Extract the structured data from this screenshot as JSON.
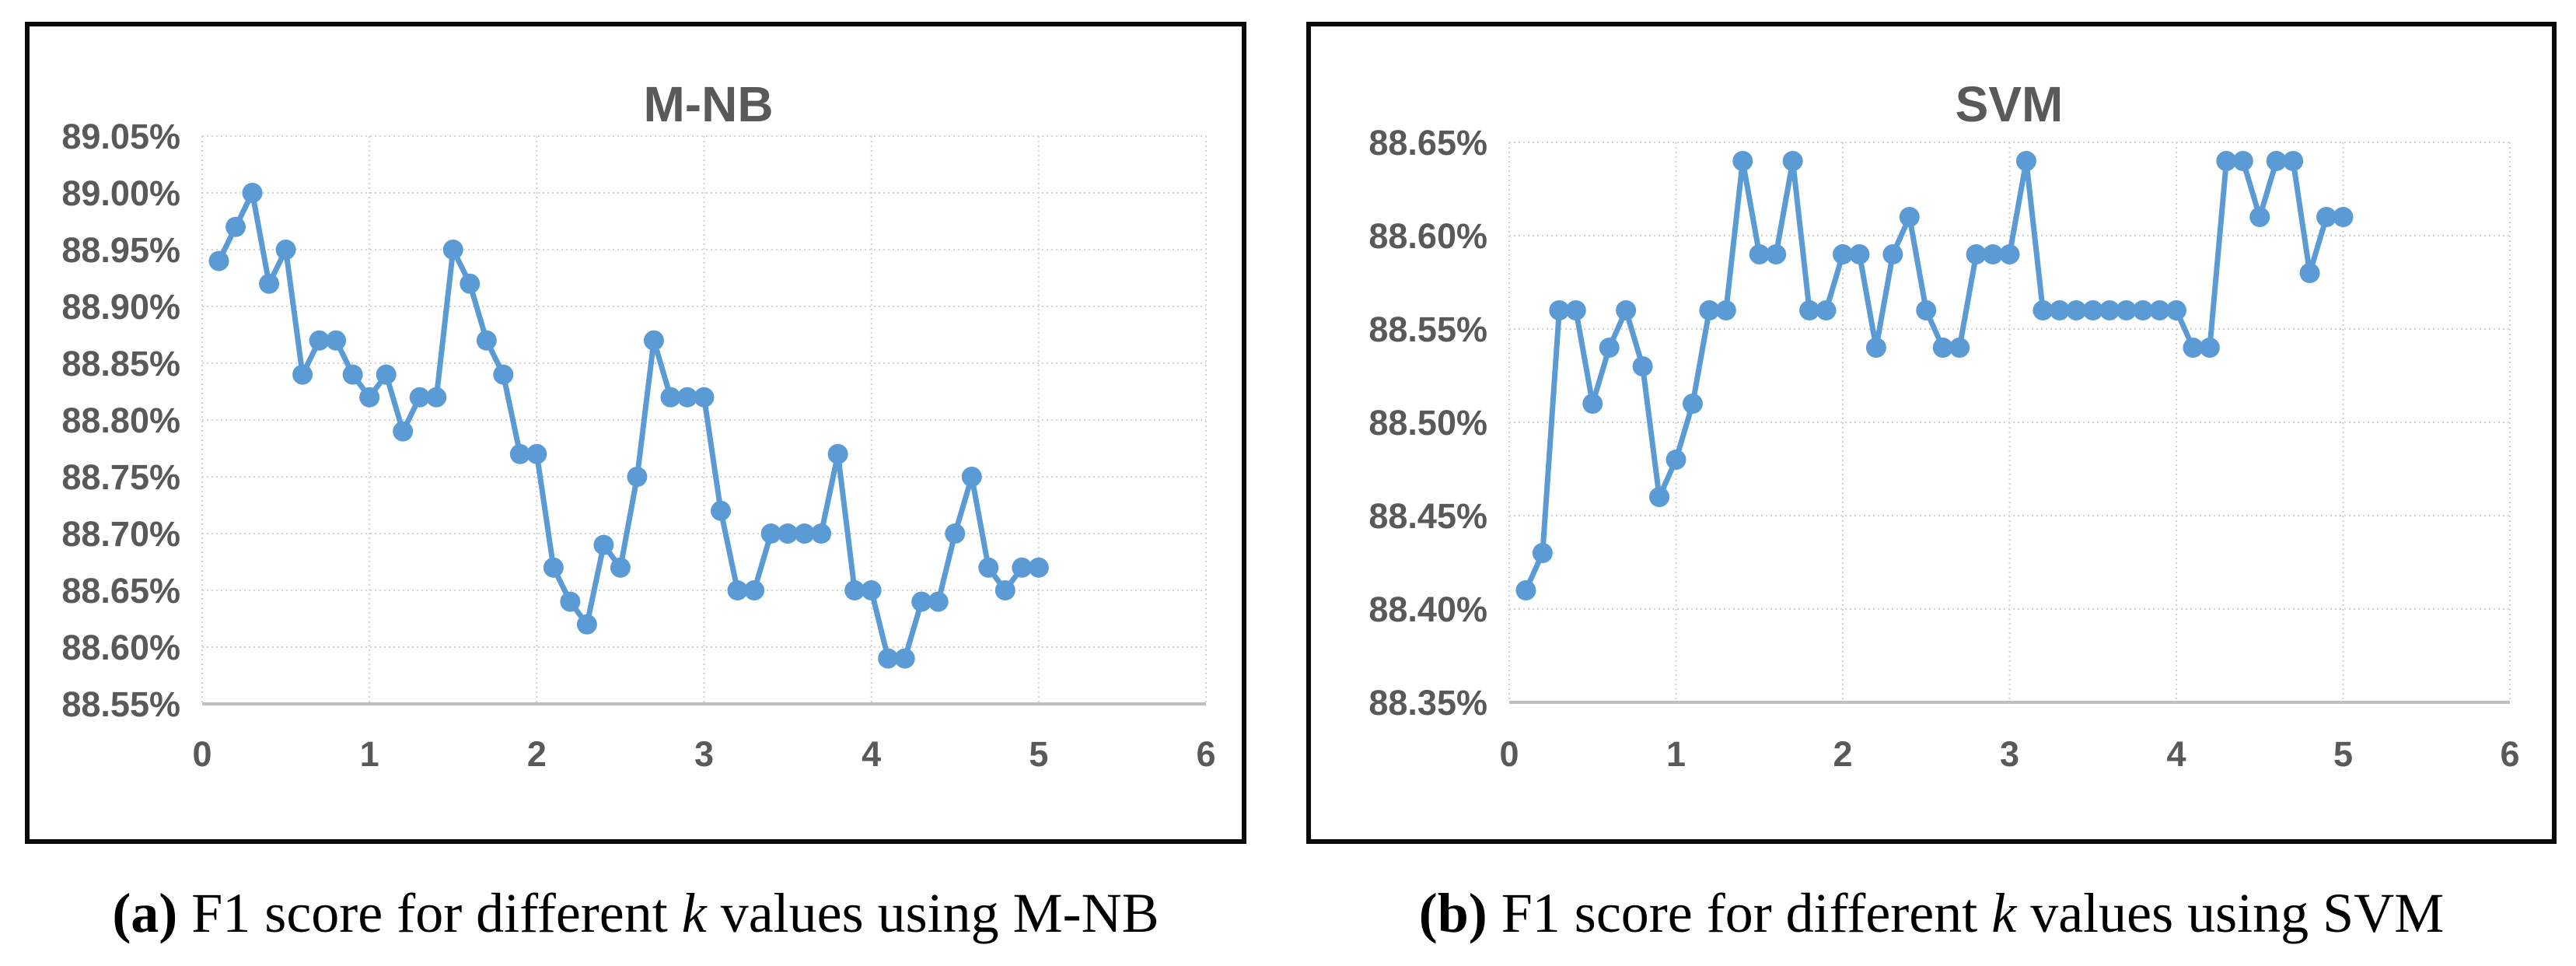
{
  "styles": {
    "series_color": "#5B9BD5",
    "grid_color": "#D2D2D2",
    "axis_line_color": "#BFBFBF",
    "label_color": "#595959",
    "frame_color": "#0a0a0a",
    "background": "#FFFFFF"
  },
  "captions": [
    {
      "parts": [
        {
          "text": "(a)",
          "bold": true
        },
        {
          "text": " F1 score for different "
        },
        {
          "text": "k",
          "italic": true
        },
        {
          "text": " values using M-NB"
        }
      ]
    },
    {
      "parts": [
        {
          "text": "(b)",
          "bold": true
        },
        {
          "text": " F1 score for different "
        },
        {
          "text": "k",
          "italic": true
        },
        {
          "text": " values using SVM"
        }
      ]
    }
  ],
  "chart_data": [
    {
      "type": "line",
      "title": "M-NB",
      "series_name": "F1 score",
      "xlabel": "",
      "ylabel": "",
      "xlim": [
        0,
        6
      ],
      "ylim": [
        88.55,
        89.05
      ],
      "grid": true,
      "legend": "none",
      "x_ticks": [
        "0",
        "1",
        "2",
        "3",
        "4",
        "5",
        "6"
      ],
      "x_tick_values": [
        0,
        1,
        2,
        3,
        4,
        5,
        6
      ],
      "y_ticks": [
        "89.05%",
        "89.00%",
        "88.95%",
        "88.90%",
        "88.85%",
        "88.80%",
        "88.75%",
        "88.70%",
        "88.65%",
        "88.60%",
        "88.55%"
      ],
      "y_tick_values": [
        89.05,
        89.0,
        88.95,
        88.9,
        88.85,
        88.8,
        88.75,
        88.7,
        88.65,
        88.6,
        88.55
      ],
      "x": [
        0.1,
        0.2,
        0.3,
        0.4,
        0.5,
        0.6,
        0.7,
        0.8,
        0.9,
        1.0,
        1.1,
        1.2,
        1.3,
        1.4,
        1.5,
        1.6,
        1.7,
        1.8,
        1.9,
        2.0,
        2.1,
        2.2,
        2.3,
        2.4,
        2.5,
        2.6,
        2.7,
        2.8,
        2.9,
        3.0,
        3.1,
        3.2,
        3.3,
        3.4,
        3.5,
        3.6,
        3.7,
        3.8,
        3.9,
        4.0,
        4.1,
        4.2,
        4.3,
        4.4,
        4.5,
        4.6,
        4.7,
        4.8,
        4.9,
        5.0
      ],
      "values": [
        88.94,
        88.97,
        89.0,
        88.92,
        88.95,
        88.84,
        88.87,
        88.87,
        88.84,
        88.82,
        88.84,
        88.79,
        88.82,
        88.82,
        88.95,
        88.92,
        88.87,
        88.84,
        88.77,
        88.77,
        88.67,
        88.64,
        88.62,
        88.69,
        88.67,
        88.75,
        88.87,
        88.82,
        88.82,
        88.82,
        88.72,
        88.65,
        88.65,
        88.7,
        88.7,
        88.7,
        88.7,
        88.77,
        88.65,
        88.65,
        88.59,
        88.59,
        88.64,
        88.64,
        88.7,
        88.75,
        88.67,
        88.65,
        88.67,
        88.67
      ]
    },
    {
      "type": "line",
      "title": "SVM",
      "series_name": "F1 score",
      "xlabel": "",
      "ylabel": "",
      "xlim": [
        0,
        6
      ],
      "ylim": [
        88.35,
        88.65
      ],
      "grid": true,
      "legend": "none",
      "x_ticks": [
        "0",
        "1",
        "2",
        "3",
        "4",
        "5",
        "6"
      ],
      "x_tick_values": [
        0,
        1,
        2,
        3,
        4,
        5,
        6
      ],
      "y_ticks": [
        "88.65%",
        "88.60%",
        "88.55%",
        "88.50%",
        "88.45%",
        "88.40%",
        "88.35%"
      ],
      "y_tick_values": [
        88.65,
        88.6,
        88.55,
        88.5,
        88.45,
        88.4,
        88.35
      ],
      "x": [
        0.1,
        0.2,
        0.3,
        0.4,
        0.5,
        0.6,
        0.7,
        0.8,
        0.9,
        1.0,
        1.1,
        1.2,
        1.3,
        1.4,
        1.5,
        1.6,
        1.7,
        1.8,
        1.9,
        2.0,
        2.1,
        2.2,
        2.3,
        2.4,
        2.5,
        2.6,
        2.7,
        2.8,
        2.9,
        3.0,
        3.1,
        3.2,
        3.3,
        3.4,
        3.5,
        3.6,
        3.7,
        3.8,
        3.9,
        4.0,
        4.1,
        4.2,
        4.3,
        4.4,
        4.5,
        4.6,
        4.7,
        4.8,
        4.9,
        5.0
      ],
      "values": [
        88.41,
        88.43,
        88.56,
        88.56,
        88.51,
        88.54,
        88.56,
        88.53,
        88.46,
        88.48,
        88.51,
        88.56,
        88.56,
        88.64,
        88.59,
        88.59,
        88.64,
        88.56,
        88.56,
        88.59,
        88.59,
        88.54,
        88.59,
        88.61,
        88.56,
        88.54,
        88.54,
        88.59,
        88.59,
        88.59,
        88.64,
        88.56,
        88.56,
        88.56,
        88.56,
        88.56,
        88.56,
        88.56,
        88.56,
        88.56,
        88.54,
        88.54,
        88.64,
        88.64,
        88.61,
        88.64,
        88.64,
        88.58,
        88.61,
        88.61
      ]
    }
  ]
}
